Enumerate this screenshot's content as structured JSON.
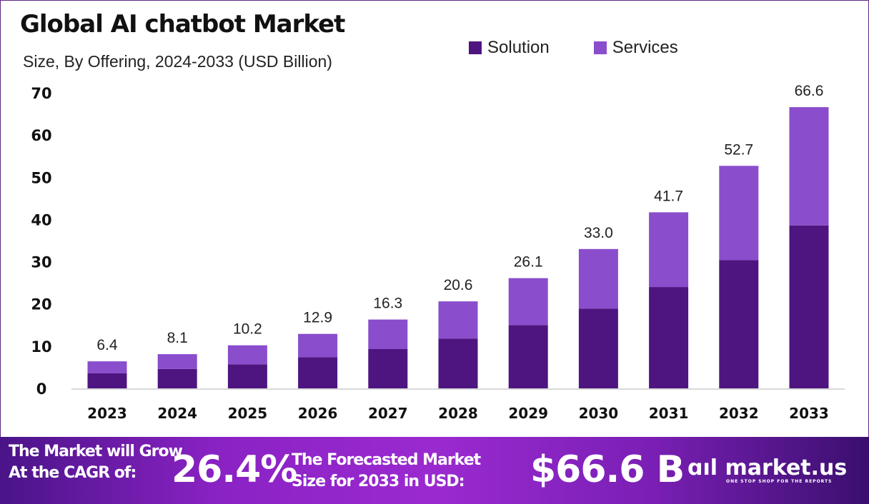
{
  "chart_data": {
    "type": "bar",
    "stacked": true,
    "title": "Global AI chatbot Market",
    "subtitle": "Size, By Offering, 2024-2033 (USD Billion)",
    "categories": [
      "2023",
      "2024",
      "2025",
      "2026",
      "2027",
      "2028",
      "2029",
      "2030",
      "2031",
      "2032",
      "2033"
    ],
    "series": [
      {
        "name": "Solution",
        "color": "#4e1580",
        "values": [
          3.6,
          4.6,
          5.7,
          7.4,
          9.3,
          11.8,
          15.0,
          18.9,
          24.0,
          30.4,
          38.6
        ]
      },
      {
        "name": "Services",
        "color": "#8a4dcc",
        "values": [
          2.8,
          3.5,
          4.5,
          5.5,
          7.0,
          8.8,
          11.1,
          14.1,
          17.7,
          22.3,
          28.0
        ]
      }
    ],
    "totals": [
      "6.4",
      "8.1",
      "10.2",
      "12.9",
      "16.3",
      "20.6",
      "26.1",
      "33.0",
      "41.7",
      "52.7",
      "66.6"
    ],
    "yticks": [
      "0",
      "10",
      "20",
      "30",
      "40",
      "50",
      "60",
      "70"
    ],
    "ylim": [
      0,
      70
    ],
    "grid": false,
    "legend": "top-right"
  },
  "footer": {
    "grow_line1": "The Market will Grow",
    "grow_line2": "At the CAGR of:",
    "cagr": "26.4%",
    "forecast_line1": "The Forecasted Market",
    "forecast_line2": "Size for 2033 in USD:",
    "forecast_value": "$66.6 B",
    "logo_text": "market.us",
    "logo_tagline": "ONE STOP SHOP FOR THE REPORTS"
  }
}
